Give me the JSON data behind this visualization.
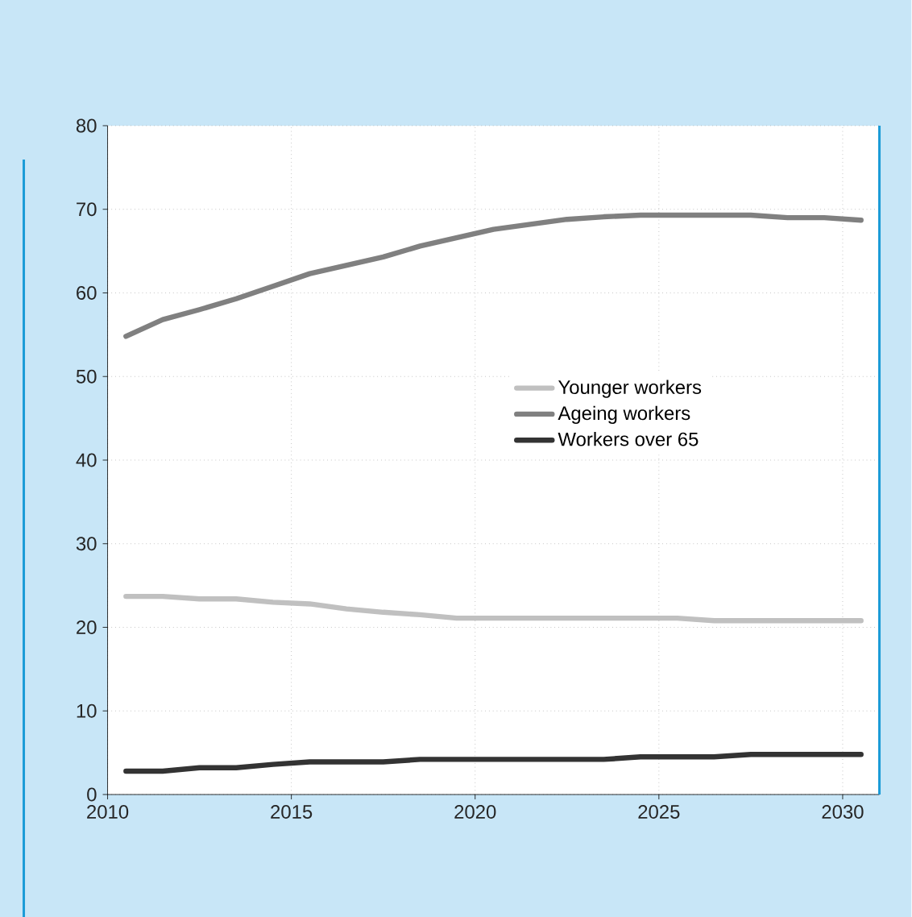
{
  "chart_data": {
    "type": "line",
    "x": [
      2010.5,
      2011.5,
      2012.5,
      2013.5,
      2014.5,
      2015.5,
      2016.5,
      2017.5,
      2018.5,
      2019.5,
      2020.5,
      2021.5,
      2022.5,
      2023.5,
      2024.5,
      2025.5,
      2026.5,
      2027.5,
      2028.5,
      2029.5,
      2030.5
    ],
    "series": [
      {
        "name": "Younger workers",
        "color": "#c0c0c0",
        "values": [
          23.7,
          23.7,
          23.4,
          23.4,
          23.0,
          22.8,
          22.2,
          21.8,
          21.5,
          21.1,
          21.1,
          21.1,
          21.1,
          21.1,
          21.1,
          21.1,
          20.8,
          20.8,
          20.8,
          20.8,
          20.8
        ]
      },
      {
        "name": "Ageing workers",
        "color": "#808080",
        "values": [
          54.8,
          56.8,
          58.0,
          59.3,
          60.8,
          62.3,
          63.3,
          64.3,
          65.6,
          66.6,
          67.6,
          68.2,
          68.8,
          69.1,
          69.3,
          69.3,
          69.3,
          69.3,
          69.0,
          69.0,
          68.7
        ]
      },
      {
        "name": "Workers over 65",
        "color": "#333333",
        "values": [
          2.8,
          2.8,
          3.2,
          3.2,
          3.6,
          3.9,
          3.9,
          3.9,
          4.2,
          4.2,
          4.2,
          4.2,
          4.2,
          4.2,
          4.5,
          4.5,
          4.5,
          4.8,
          4.8,
          4.8,
          4.8
        ]
      }
    ],
    "xlim": [
      2010,
      2031
    ],
    "ylim": [
      0,
      80
    ],
    "xticks": [
      2010,
      2015,
      2020,
      2025,
      2030
    ],
    "yticks": [
      0,
      10,
      20,
      30,
      40,
      50,
      60,
      70,
      80
    ],
    "grid": true,
    "legend": "right",
    "marker": "none",
    "line_style": "solid"
  }
}
